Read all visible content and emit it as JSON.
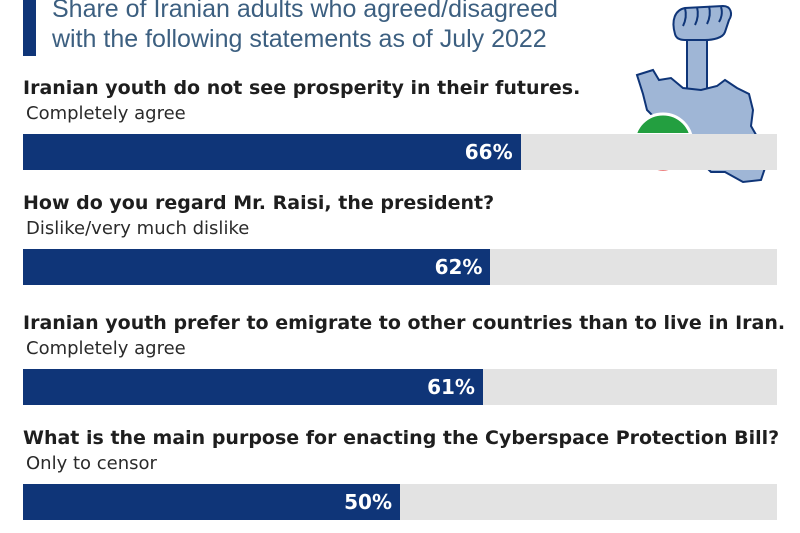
{
  "header": {
    "subtitle_line1": "Share of Iranian adults who agreed/disagreed",
    "subtitle_line2": "with the following statements as of July 2022"
  },
  "colors": {
    "bar": "#0f3578",
    "track": "#e3e3e3",
    "subtitle": "#3c5f80",
    "flag_green": "#239f40",
    "flag_red": "#da0000",
    "map": "#9fb6d6"
  },
  "icons": [
    "raised-fist-icon",
    "iran-map-icon",
    "iran-flag-icon"
  ],
  "chart_data": {
    "type": "bar",
    "orientation": "horizontal",
    "unit": "%",
    "xlim": [
      0,
      100
    ],
    "categories": [
      "Iranian youth do not see prosperity in their futures.",
      "How do you regard Mr. Raisi, the president?",
      "Iranian youth prefer to emigrate to other countries than to live in Iran.",
      "What is the main purpose for enacting the Cyberspace Protection Bill?"
    ],
    "answers": [
      "Completely agree",
      "Dislike/very much dislike",
      "Completely agree",
      "Only to censor"
    ],
    "values": [
      66,
      62,
      61,
      50
    ],
    "value_labels": [
      "66%",
      "62%",
      "61%",
      "50%"
    ],
    "title": "Share of Iranian adults who agreed/disagreed with the following statements as of July 2022"
  }
}
